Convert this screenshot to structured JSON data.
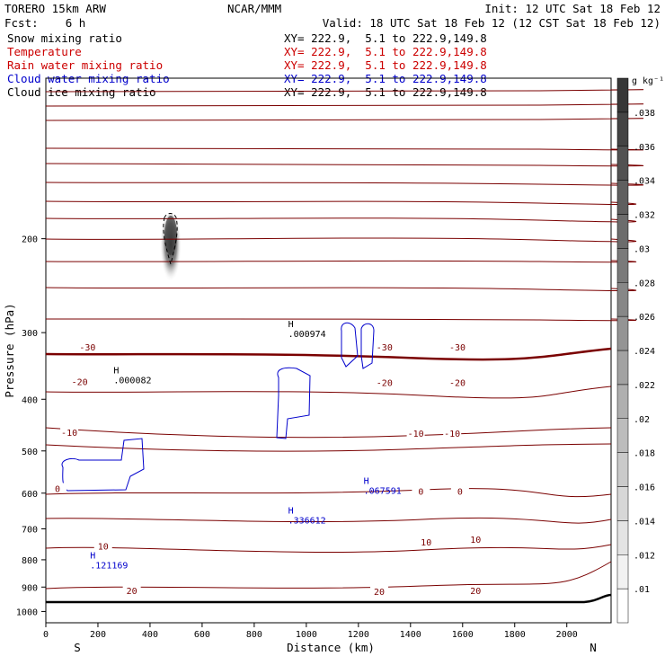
{
  "header": {
    "model": "TORERO  15km ARW",
    "center": "NCAR/MMM",
    "init": "Init: 12 UTC Sat 18 Feb 12",
    "fcst": "Fcst:    6 h",
    "valid": "Valid: 18 UTC Sat 18 Feb 12 (12 CST Sat 18 Feb 12)"
  },
  "legend": [
    {
      "name": "Snow mixing ratio",
      "xy": "XY= 222.9,  5.1 to 222.9,149.8",
      "color": "#000000"
    },
    {
      "name": "Temperature",
      "xy": "XY= 222.9,  5.1 to 222.9,149.8",
      "color": "#cc0000"
    },
    {
      "name": "Rain water mixing ratio",
      "xy": "XY= 222.9,  5.1 to 222.9,149.8",
      "color": "#cc0000"
    },
    {
      "name": "Cloud water mixing ratio",
      "xy": "XY= 222.9,  5.1 to 222.9,149.8",
      "color": "#0000cc"
    },
    {
      "name": "Cloud ice mixing ratio",
      "xy": "XY= 222.9,  5.1 to 222.9,149.8",
      "color": "#000000"
    }
  ],
  "chart_data": {
    "type": "contour",
    "xlabel": "Distance (km)",
    "ylabel": "Pressure (hPa)",
    "xlim": [
      0,
      2170
    ],
    "ylim": [
      1050,
      100
    ],
    "x_ticks": [
      0,
      200,
      400,
      600,
      800,
      1000,
      1200,
      1400,
      1600,
      1800,
      2000
    ],
    "y_ticks": [
      200,
      300,
      400,
      500,
      600,
      700,
      800,
      900,
      1000
    ],
    "side_left": "S",
    "side_right": "N",
    "colorbar": {
      "unit": "g kg⁻¹",
      "ticks": [
        ".01",
        ".012",
        ".014",
        ".016",
        ".018",
        ".02",
        ".022",
        ".024",
        ".026",
        ".028",
        ".03",
        ".032",
        ".034",
        ".036",
        ".038"
      ]
    },
    "temperature_labels": [
      {
        "text": "-30",
        "x": 160,
        "p": 320
      },
      {
        "text": "-30",
        "x": 1300,
        "p": 320
      },
      {
        "text": "-30",
        "x": 1580,
        "p": 320
      },
      {
        "text": "-20",
        "x": 130,
        "p": 372
      },
      {
        "text": "-20",
        "x": 1300,
        "p": 373
      },
      {
        "text": "-20",
        "x": 1580,
        "p": 373
      },
      {
        "text": "-10",
        "x": 90,
        "p": 463
      },
      {
        "text": "-10",
        "x": 1420,
        "p": 465
      },
      {
        "text": "-10",
        "x": 1560,
        "p": 465
      },
      {
        "text": "0",
        "x": 45,
        "p": 590
      },
      {
        "text": "0",
        "x": 1440,
        "p": 597
      },
      {
        "text": "0",
        "x": 1590,
        "p": 597
      },
      {
        "text": "10",
        "x": 220,
        "p": 757
      },
      {
        "text": "10",
        "x": 1460,
        "p": 743
      },
      {
        "text": "10",
        "x": 1650,
        "p": 735
      },
      {
        "text": "20",
        "x": 330,
        "p": 917
      },
      {
        "text": "20",
        "x": 1280,
        "p": 920
      },
      {
        "text": "20",
        "x": 1650,
        "p": 917
      }
    ],
    "extrema": [
      {
        "kind": "H",
        "value": ".000082",
        "x": 260,
        "p": 358,
        "color": "#000000"
      },
      {
        "kind": "H",
        "value": ".000974",
        "x": 930,
        "p": 293,
        "color": "#000000"
      },
      {
        "kind": "H",
        "value": ".067591",
        "x": 1220,
        "p": 576,
        "color": "#0000cc"
      },
      {
        "kind": "H",
        "value": ".336612",
        "x": 930,
        "p": 655,
        "color": "#0000cc"
      },
      {
        "kind": "H",
        "value": ".121169",
        "x": 170,
        "p": 795,
        "color": "#0000cc"
      }
    ]
  }
}
